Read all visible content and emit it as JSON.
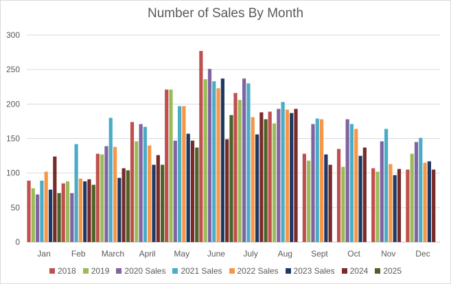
{
  "chart_data": {
    "type": "bar",
    "title": "Number of Sales By Month",
    "xlabel": "",
    "ylabel": "",
    "ylim": [
      0,
      300
    ],
    "yticks": [
      0,
      50,
      100,
      150,
      200,
      250,
      300
    ],
    "grid": true,
    "legend_position": "bottom",
    "categories": [
      "Jan",
      "Feb",
      "March",
      "April",
      "May",
      "June",
      "July",
      "Aug",
      "Sept",
      "Oct",
      "Nov",
      "Dec"
    ],
    "series": [
      {
        "name": "2018",
        "color": "#c0504d",
        "values": [
          89,
          85,
          128,
          174,
          221,
          277,
          216,
          189,
          128,
          135,
          107,
          105
        ]
      },
      {
        "name": "2019",
        "color": "#9bbb59",
        "values": [
          78,
          88,
          127,
          146,
          221,
          236,
          206,
          172,
          118,
          109,
          102,
          128
        ]
      },
      {
        "name": "2020 Sales",
        "color": "#8064a2",
        "values": [
          69,
          71,
          139,
          171,
          147,
          251,
          237,
          193,
          171,
          178,
          146,
          145
        ]
      },
      {
        "name": "2021 Sales",
        "color": "#4bacc6",
        "values": [
          89,
          142,
          180,
          167,
          197,
          233,
          230,
          203,
          179,
          171,
          164,
          151
        ]
      },
      {
        "name": "2022 Sales",
        "color": "#f79646",
        "values": [
          102,
          92,
          138,
          140,
          197,
          223,
          181,
          192,
          178,
          164,
          113,
          115
        ]
      },
      {
        "name": "2023 Sales",
        "color": "#1f3864",
        "values": [
          76,
          88,
          93,
          112,
          157,
          237,
          156,
          187,
          127,
          125,
          97,
          117
        ]
      },
      {
        "name": "2024",
        "color": "#772c2a",
        "values": [
          124,
          91,
          107,
          126,
          147,
          149,
          188,
          193,
          112,
          137,
          106,
          105
        ]
      },
      {
        "name": "2025",
        "color": "#4f6228",
        "values": [
          71,
          83,
          104,
          112,
          137,
          184,
          178,
          null,
          null,
          null,
          null,
          null
        ]
      }
    ]
  }
}
